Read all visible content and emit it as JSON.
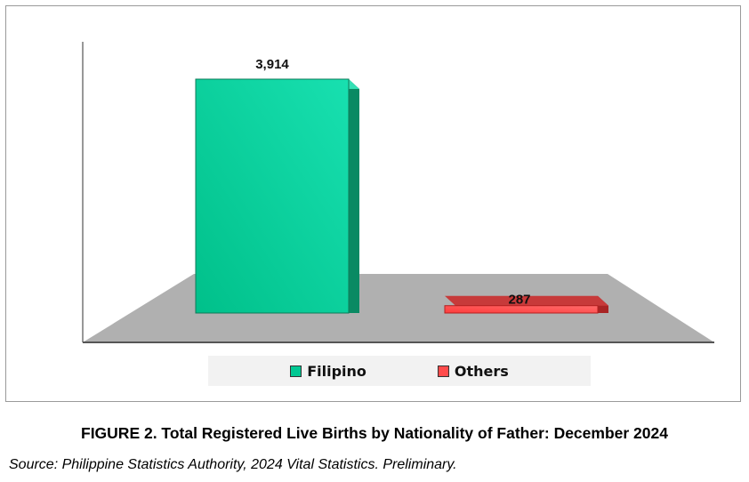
{
  "figure_caption": "FIGURE 2. Total Registered Live Births by Nationality of Father: December 2024",
  "source_note": "Source: Philippine Statistics Authority, 2024 Vital Statistics. Preliminary.",
  "colors": {
    "filipino": "#00c893",
    "others": "#ff4b4b",
    "floor": "#b0b0b0"
  },
  "chart_data": {
    "type": "bar",
    "style": "3d",
    "categories": [
      "Filipino",
      "Others"
    ],
    "values": [
      3914,
      287
    ],
    "value_labels": [
      "3,914",
      "287"
    ],
    "legend": [
      "Filipino",
      "Others"
    ],
    "legend_position": "bottom",
    "ylim": [
      0,
      3914
    ],
    "grid": false,
    "title": "",
    "xlabel": "",
    "ylabel": ""
  }
}
